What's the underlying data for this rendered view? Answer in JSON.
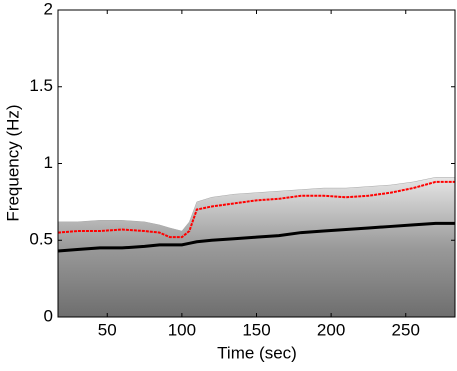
{
  "chart_data": {
    "type": "line",
    "xlabel": "Time (sec)",
    "ylabel": "Frequency (Hz)",
    "x": [
      17,
      30,
      45,
      60,
      75,
      85,
      92,
      100,
      105,
      110,
      120,
      135,
      150,
      165,
      180,
      195,
      210,
      225,
      240,
      255,
      270,
      283
    ],
    "series": [
      {
        "color": "#a9a9a9",
        "style": "area",
        "values": [
          0.62,
          0.62,
          0.63,
          0.63,
          0.62,
          0.6,
          0.58,
          0.56,
          0.62,
          0.75,
          0.78,
          0.8,
          0.81,
          0.82,
          0.83,
          0.84,
          0.84,
          0.85,
          0.86,
          0.88,
          0.91,
          0.91
        ]
      },
      {
        "color": "#000000",
        "style": "line",
        "values": [
          0.43,
          0.44,
          0.45,
          0.45,
          0.46,
          0.47,
          0.47,
          0.47,
          0.48,
          0.49,
          0.5,
          0.51,
          0.52,
          0.53,
          0.55,
          0.56,
          0.57,
          0.58,
          0.59,
          0.6,
          0.61,
          0.61
        ]
      },
      {
        "color": "#ff0000",
        "style": "line",
        "values": [
          0.55,
          0.56,
          0.56,
          0.57,
          0.56,
          0.55,
          0.52,
          0.52,
          0.56,
          0.7,
          0.72,
          0.74,
          0.76,
          0.77,
          0.79,
          0.79,
          0.78,
          0.79,
          0.81,
          0.84,
          0.88,
          0.88
        ]
      }
    ],
    "xlim": [
      17,
      283
    ],
    "ylim": [
      0,
      2
    ],
    "xticks": [
      50,
      100,
      150,
      200,
      250
    ],
    "yticks": [
      0,
      0.5,
      1,
      1.5,
      2
    ]
  }
}
